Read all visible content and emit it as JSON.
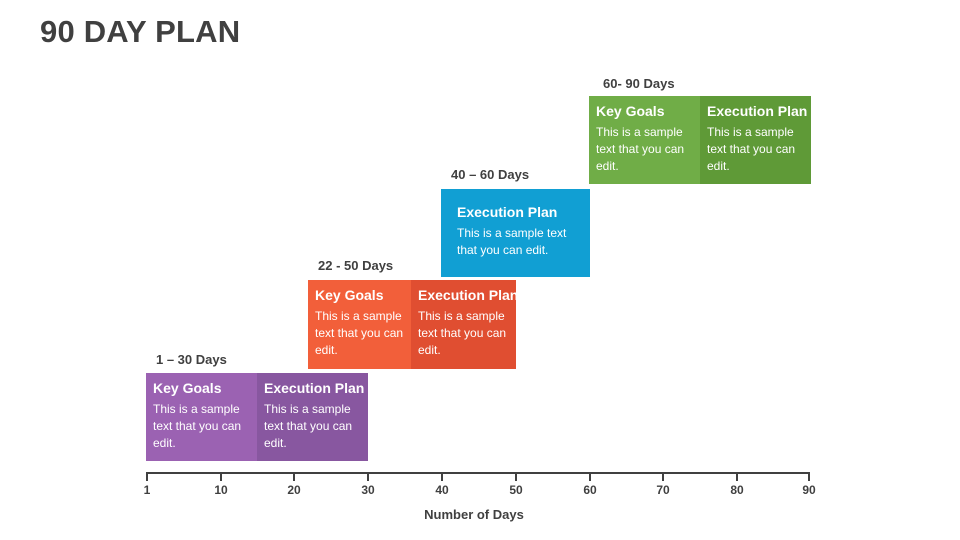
{
  "title": "90 DAY PLAN",
  "phases": [
    {
      "label": "1 – 30 Days",
      "key_goals": {
        "heading": "Key Goals",
        "text": "This is a sample text that you can edit.",
        "color": "#9B62B2"
      },
      "execution_plan": {
        "heading": "Execution Plan",
        "text": "This is a sample text that you can edit.",
        "color": "#8857A0"
      }
    },
    {
      "label": "22 - 50 Days",
      "key_goals": {
        "heading": "Key Goals",
        "text": "This is a sample text that you can edit.",
        "color": "#F25F3A"
      },
      "execution_plan": {
        "heading": "Execution Plan",
        "text": "This is a sample text that you can edit.",
        "color": "#E04E31"
      }
    },
    {
      "label": "40 – 60 Days",
      "execution_plan": {
        "heading": "Execution Plan",
        "text": "This is a sample text that you can edit.",
        "color": "#119FD3"
      }
    },
    {
      "label": "60- 90 Days",
      "key_goals": {
        "heading": "Key Goals",
        "text": "This is a sample text that you can edit.",
        "color": "#70AD47"
      },
      "execution_plan": {
        "heading": "Execution Plan",
        "text": "This is a sample text that you can edit.",
        "color": "#5F9A37"
      }
    }
  ],
  "axis": {
    "ticks": [
      "1",
      "10",
      "20",
      "30",
      "40",
      "50",
      "60",
      "70",
      "80",
      "90"
    ],
    "label": "Number of Days"
  }
}
